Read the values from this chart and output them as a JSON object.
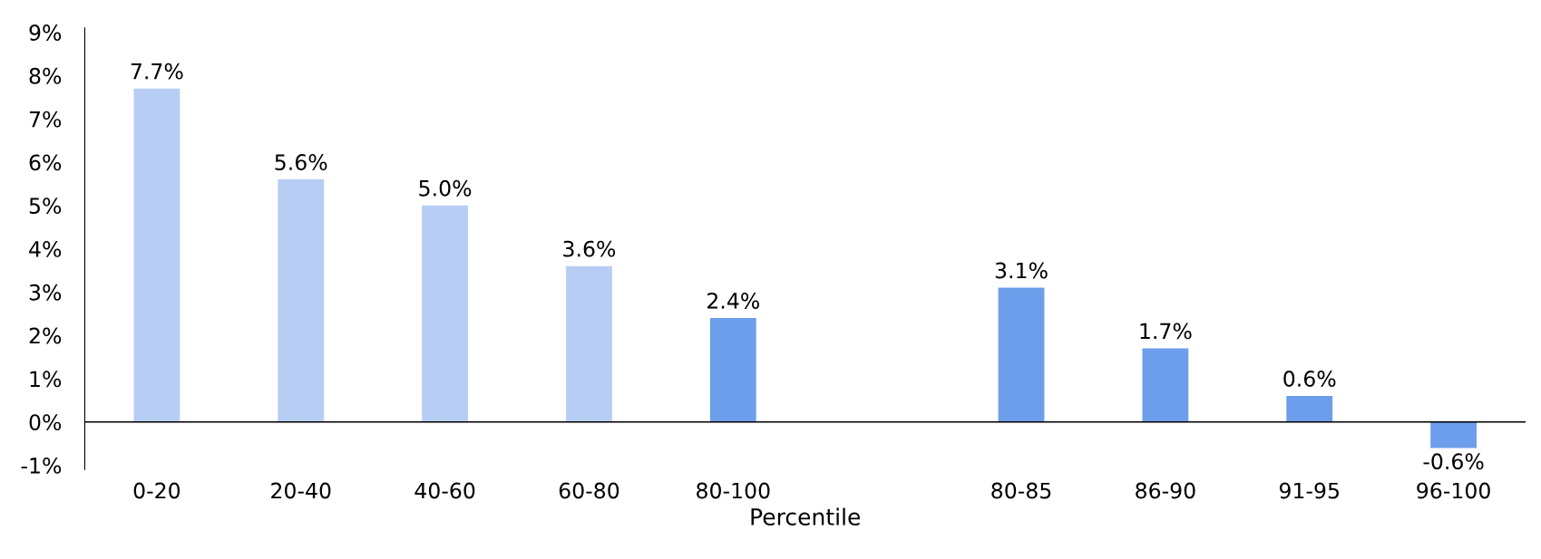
{
  "chart_data": {
    "type": "bar",
    "xlabel": "Percentile",
    "categories": [
      "0-20",
      "20-40",
      "40-60",
      "60-80",
      "80-100",
      null,
      "80-85",
      "86-90",
      "91-95",
      "96-100"
    ],
    "values": [
      7.7,
      5.6,
      5.0,
      3.6,
      2.4,
      null,
      3.1,
      1.7,
      0.6,
      -0.6
    ],
    "colors": [
      "#b7cdf4",
      "#b7cdf4",
      "#b7cdf4",
      "#b7cdf4",
      "#6d9eeb",
      "#6d9eeb",
      "#6d9eeb",
      "#6d9eeb",
      "#6d9eeb",
      "#6d9eeb"
    ],
    "value_labels": [
      "7.7%",
      "5.6%",
      "5.0%",
      "3.6%",
      "2.4%",
      null,
      "3.1%",
      "1.7%",
      "0.6%",
      "-0.6%"
    ],
    "ylim": [
      -1.1,
      9.1
    ],
    "yticks": [
      {
        "value": -1,
        "label": "-1%"
      },
      {
        "value": 0,
        "label": "0%"
      },
      {
        "value": 1,
        "label": "1%"
      },
      {
        "value": 2,
        "label": "2%"
      },
      {
        "value": 3,
        "label": "3%"
      },
      {
        "value": 4,
        "label": "4%"
      },
      {
        "value": 5,
        "label": "5%"
      },
      {
        "value": 6,
        "label": "6%"
      },
      {
        "value": 7,
        "label": "7%"
      },
      {
        "value": 8,
        "label": "8%"
      },
      {
        "value": 9,
        "label": "9%"
      }
    ],
    "ref_lines": [
      {
        "axis": "y",
        "value": 0,
        "color": "#000000"
      }
    ],
    "grid": false,
    "legend": false
  }
}
